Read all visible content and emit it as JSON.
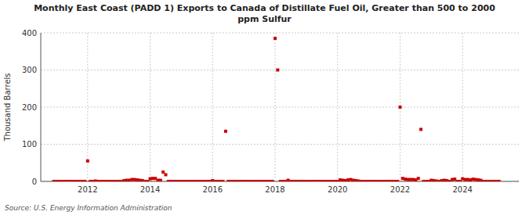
{
  "chart_data": {
    "type": "scatter",
    "title": "Monthly East Coast (PADD 1) Exports to Canada of Distillate Fuel Oil, Greater than 500 to 2000\nppm Sulfur",
    "ylabel": "Thousand Barrels",
    "source": "Source: U.S. Energy Information Administration",
    "color": "#cc0000",
    "marker": "square",
    "grid": true,
    "xlim": [
      2010.5,
      2025.8
    ],
    "xticks": [
      2012,
      2014,
      2016,
      2018,
      2020,
      2022,
      2024
    ],
    "ylim": [
      0,
      400
    ],
    "yticks": [
      0,
      100,
      200,
      300,
      400
    ],
    "x": [
      2010.917,
      2011.0,
      2011.083,
      2011.167,
      2011.25,
      2011.333,
      2011.417,
      2011.5,
      2011.583,
      2011.667,
      2011.75,
      2011.833,
      2011.917,
      2012.0,
      2012.083,
      2012.167,
      2012.25,
      2012.333,
      2012.417,
      2012.5,
      2012.583,
      2012.667,
      2012.75,
      2012.833,
      2012.917,
      2013.0,
      2013.083,
      2013.167,
      2013.25,
      2013.333,
      2013.417,
      2013.5,
      2013.583,
      2013.667,
      2013.75,
      2013.833,
      2013.917,
      2014.0,
      2014.083,
      2014.167,
      2014.25,
      2014.333,
      2014.417,
      2014.5,
      2014.583,
      2014.667,
      2014.75,
      2014.833,
      2014.917,
      2015.0,
      2015.083,
      2015.167,
      2015.25,
      2015.333,
      2015.417,
      2015.5,
      2015.583,
      2015.667,
      2015.75,
      2015.833,
      2015.917,
      2016.0,
      2016.083,
      2016.167,
      2016.25,
      2016.333,
      2016.417,
      2016.5,
      2016.583,
      2016.667,
      2016.75,
      2016.833,
      2016.917,
      2017.0,
      2017.083,
      2017.167,
      2017.25,
      2017.333,
      2017.417,
      2017.5,
      2017.583,
      2017.667,
      2017.75,
      2017.833,
      2017.917,
      2018.0,
      2018.083,
      2018.167,
      2018.25,
      2018.333,
      2018.417,
      2018.5,
      2018.583,
      2018.667,
      2018.75,
      2018.833,
      2018.917,
      2019.0,
      2019.083,
      2019.167,
      2019.25,
      2019.333,
      2019.417,
      2019.5,
      2019.583,
      2019.667,
      2019.75,
      2019.833,
      2019.917,
      2020.0,
      2020.083,
      2020.167,
      2020.25,
      2020.333,
      2020.417,
      2020.5,
      2020.583,
      2020.667,
      2020.75,
      2020.833,
      2020.917,
      2021.0,
      2021.083,
      2021.167,
      2021.25,
      2021.333,
      2021.417,
      2021.5,
      2021.583,
      2021.667,
      2021.75,
      2021.833,
      2021.917,
      2022.0,
      2022.083,
      2022.167,
      2022.25,
      2022.333,
      2022.417,
      2022.5,
      2022.583,
      2022.667,
      2022.75,
      2022.833,
      2022.917,
      2023.0,
      2023.083,
      2023.167,
      2023.25,
      2023.333,
      2023.417,
      2023.5,
      2023.583,
      2023.667,
      2023.75,
      2023.833,
      2023.917,
      2024.0,
      2024.083,
      2024.167,
      2024.25,
      2024.333,
      2024.417,
      2024.5,
      2024.583,
      2024.667,
      2024.75,
      2024.833,
      2024.917,
      2025.0,
      2025.083,
      2025.167
    ],
    "values": [
      0,
      0,
      0,
      0,
      0,
      0,
      0,
      0,
      0,
      0,
      0,
      0,
      0,
      55,
      0,
      0,
      1,
      0,
      0,
      0,
      0,
      0,
      0,
      0,
      0,
      0,
      0,
      2,
      3,
      3,
      5,
      5,
      4,
      3,
      2,
      0,
      0,
      7,
      8,
      8,
      3,
      3,
      25,
      18,
      0,
      0,
      0,
      0,
      0,
      0,
      0,
      0,
      0,
      0,
      0,
      0,
      0,
      0,
      0,
      0,
      0,
      2,
      0,
      0,
      0,
      0,
      135,
      0,
      0,
      0,
      0,
      0,
      0,
      0,
      0,
      0,
      0,
      0,
      0,
      0,
      0,
      0,
      0,
      0,
      0,
      385,
      300,
      0,
      0,
      0,
      3,
      0,
      0,
      0,
      0,
      0,
      0,
      0,
      0,
      0,
      0,
      0,
      0,
      0,
      0,
      0,
      0,
      0,
      0,
      0,
      4,
      3,
      2,
      4,
      5,
      3,
      2,
      1,
      0,
      0,
      0,
      0,
      0,
      0,
      0,
      0,
      0,
      0,
      0,
      0,
      0,
      0,
      0,
      200,
      8,
      6,
      5,
      5,
      5,
      4,
      8,
      140,
      0,
      0,
      0,
      3,
      2,
      1,
      0,
      2,
      3,
      2,
      0,
      5,
      6,
      0,
      0,
      7,
      5,
      5,
      4,
      6,
      5,
      4,
      3,
      0,
      0,
      0,
      0,
      0,
      0,
      0
    ]
  }
}
